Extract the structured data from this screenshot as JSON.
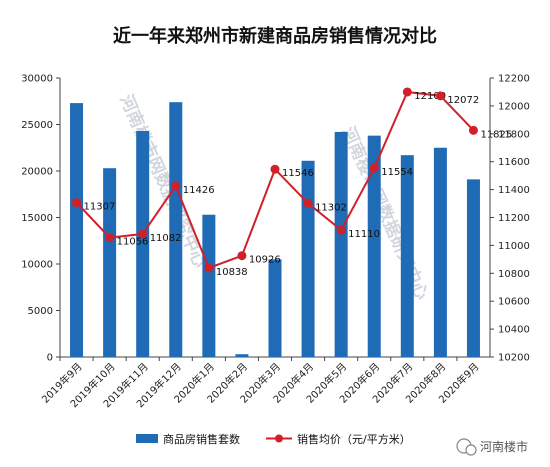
{
  "chart_data": {
    "type": "bar",
    "title": "近一年来郑州市新建商品房销售情况对比",
    "categories": [
      "2019年9月",
      "2019年10月",
      "2019年11月",
      "2019年12月",
      "2020年1月",
      "2020年2月",
      "2020年3月",
      "2020年4月",
      "2020年5月",
      "2020年6月",
      "2020年7月",
      "2020年8月",
      "2020年9月"
    ],
    "series": [
      {
        "name": "商品房销售套数",
        "type": "bar",
        "axis": "left",
        "color": "#1f6bb5",
        "values": [
          27300,
          20300,
          24300,
          27400,
          15300,
          300,
          10500,
          21100,
          24200,
          23800,
          21700,
          22500,
          19100
        ]
      },
      {
        "name": "销售均价（元/平方米）",
        "type": "line",
        "axis": "right",
        "color": "#d0202a",
        "values": [
          11307,
          11056,
          11082,
          11426,
          10838,
          10926,
          11546,
          11302,
          11110,
          11554,
          12100,
          12072,
          11825
        ],
        "labels": [
          "11307",
          "11056",
          "11082",
          "11426",
          "10838",
          "10926",
          "11546",
          "11302",
          "11110",
          "11554",
          "12100",
          "12072",
          "11825"
        ]
      }
    ],
    "y_left": {
      "ylim": [
        0,
        30000
      ],
      "ticks": [
        "0",
        "5000",
        "10000",
        "15000",
        "20000",
        "25000",
        "30000"
      ]
    },
    "y_right": {
      "ylim": [
        10200,
        12200
      ],
      "ticks": [
        "10200",
        "10400",
        "10600",
        "10800",
        "11000",
        "11200",
        "11400",
        "11600",
        "11800",
        "12000",
        "12200"
      ]
    },
    "legend_position": "bottom",
    "grid": false
  },
  "watermarks": [
    "河南楼市网数据研究中心",
    "河南楼市网数据研究中心"
  ],
  "brand": {
    "label": "河南楼市",
    "icon": "wechat-icon"
  }
}
